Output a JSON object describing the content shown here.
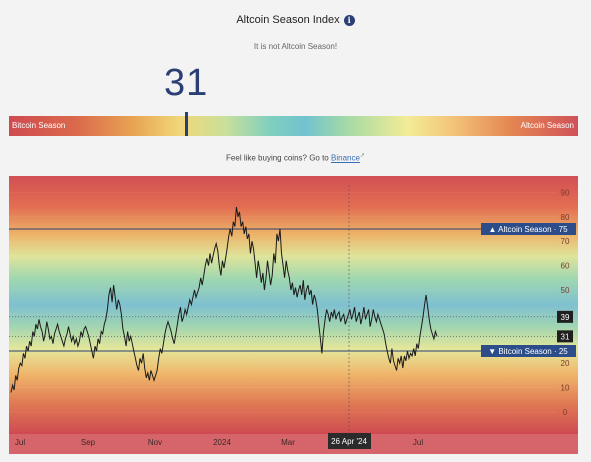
{
  "header": {
    "title": "Altcoin Season Index",
    "info_icon": "info-icon",
    "status": "It is not Altcoin Season!",
    "value": "31"
  },
  "season_bar": {
    "left_label": "Bitcoin Season",
    "right_label": "Altcoin Season",
    "marker_value": 31
  },
  "cta": {
    "prefix": "Feel like buying coins? Go to",
    "link": "Binance",
    "external_icon": "external-link-icon"
  },
  "chart_data": {
    "type": "line",
    "title": "",
    "ylim": [
      -10,
      95
    ],
    "y_ticks": [
      0,
      10,
      20,
      30,
      40,
      50,
      60,
      70,
      80,
      90
    ],
    "x_ticks": [
      "Jul",
      "Sep",
      "Nov",
      "2024",
      "Mar",
      "Jul"
    ],
    "crosshair_label": "26 Apr '24",
    "reference_lines": [
      {
        "label": "▲ Altcoin Season · 75",
        "value": 75
      },
      {
        "label": "▼ Bitcoin Season · 25",
        "value": 25
      }
    ],
    "value_badges": [
      {
        "label": "39",
        "value": 39
      },
      {
        "label": "31",
        "value": 31
      }
    ],
    "series": [
      {
        "values": [
          8,
          11,
          9,
          15,
          13,
          18,
          20,
          19,
          24,
          22,
          27,
          25,
          29,
          27,
          33,
          31,
          36,
          34,
          38,
          35,
          33,
          29,
          32,
          37,
          34,
          30,
          31,
          28,
          32,
          34,
          36,
          33,
          31,
          29,
          27,
          30,
          32,
          35,
          32,
          29,
          31,
          28,
          30,
          27,
          29,
          33,
          31,
          34,
          35,
          33,
          31,
          28,
          25,
          22,
          27,
          25,
          30,
          28,
          33,
          32,
          36,
          38,
          42,
          48,
          51,
          45,
          52,
          47,
          42,
          46,
          44,
          40,
          34,
          31,
          27,
          33,
          29,
          31,
          28,
          25,
          22,
          19,
          17,
          22,
          20,
          24,
          18,
          14,
          16,
          13,
          17,
          15,
          13,
          15,
          17,
          22,
          26,
          24,
          28,
          32,
          35,
          37,
          35,
          33,
          30,
          28,
          32,
          36,
          40,
          43,
          37,
          39,
          42,
          40,
          43,
          46,
          44,
          47,
          50,
          47,
          49,
          51,
          55,
          52,
          56,
          60,
          63,
          60,
          65,
          61,
          64,
          67,
          69,
          66,
          60,
          56,
          62,
          59,
          63,
          67,
          72,
          75,
          72,
          78,
          76,
          84,
          80,
          82,
          76,
          78,
          73,
          76,
          71,
          73,
          65,
          70,
          67,
          61,
          55,
          62,
          58,
          53,
          57,
          50,
          55,
          62,
          57,
          52,
          56,
          65,
          61,
          73,
          70,
          75,
          65,
          60,
          55,
          62,
          58,
          55,
          50,
          53,
          48,
          51,
          47,
          50,
          52,
          48,
          54,
          46,
          50,
          52,
          48,
          50,
          44,
          48,
          46,
          42,
          36,
          30,
          24,
          33,
          38,
          42,
          40,
          37,
          41,
          39,
          42,
          38,
          40,
          41,
          37,
          39,
          40,
          36,
          38,
          40,
          42,
          38,
          40,
          43,
          37,
          39,
          41,
          36,
          39,
          43,
          38,
          40,
          42,
          35,
          38,
          42,
          39,
          37,
          40,
          38,
          36,
          34,
          32,
          28,
          25,
          22,
          20,
          26,
          21,
          19,
          17,
          22,
          20,
          23,
          18,
          23,
          21,
          25,
          22,
          24,
          23,
          26,
          23,
          28,
          26,
          31,
          35,
          39,
          44,
          48,
          43,
          38,
          34,
          32,
          30,
          33,
          31
        ]
      }
    ]
  }
}
